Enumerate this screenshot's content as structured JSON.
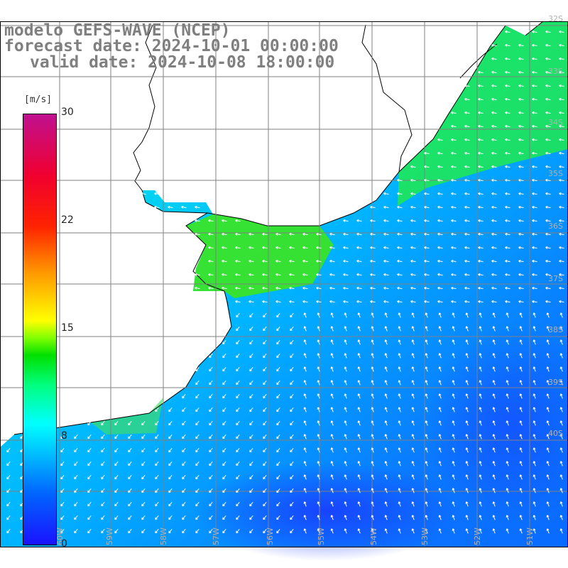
{
  "title": {
    "line1": "modelo GEFS-WAVE (NCEP)",
    "line2": "forecast date: 2024-10-01 00:00:00",
    "line3": "valid date: 2024-10-08 18:00:00"
  },
  "colorbar": {
    "unit": "[m/s]",
    "ticks": [
      "30",
      "22",
      "15",
      "8",
      "0"
    ],
    "range": [
      0,
      30
    ]
  },
  "lat_labels": [
    "32S",
    "33S",
    "34S",
    "35S",
    "36S",
    "37S",
    "38S",
    "39S",
    "40S"
  ],
  "lon_labels": [
    "60W",
    "59W",
    "58W",
    "57W",
    "56W",
    "55W",
    "54W",
    "53W",
    "52W",
    "51W"
  ],
  "colors": {
    "land": "#ffffff",
    "coast": "#000000",
    "grid": "#808080",
    "title": "#7f7f7f",
    "arrows": "#ffffff"
  },
  "legend_placement": "left",
  "map_data": {
    "type": "wind-field",
    "variable": "wind speed",
    "units": "m/s"
  }
}
